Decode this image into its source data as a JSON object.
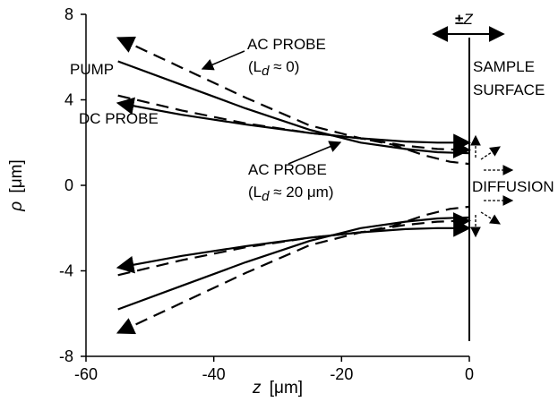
{
  "chart_data": {
    "type": "line",
    "xlim": [
      -60,
      0
    ],
    "ylim": [
      -8,
      8
    ],
    "x_ticks": [
      "-60",
      "-40",
      "-20",
      "0"
    ],
    "y_ticks": [
      "8",
      "4",
      "0",
      "-4",
      "-8"
    ],
    "xlabel": {
      "var": "z",
      "unit": "[μm]"
    },
    "ylabel": {
      "var": "ρ",
      "unit": "[μm]"
    },
    "grid": false,
    "legend": "none",
    "series": [
      {
        "id": "pump",
        "style": "solid",
        "arrow": false,
        "points": [
          [
            -55,
            5.8
          ],
          [
            -45,
            4.7
          ],
          [
            -35,
            3.6
          ],
          [
            -25,
            2.6
          ],
          [
            -17,
            2.0
          ],
          [
            -10,
            1.7
          ],
          [
            -5,
            1.55
          ],
          [
            0,
            1.5
          ]
        ]
      },
      {
        "id": "pump-mirror",
        "style": "solid",
        "arrow": false,
        "points": [
          [
            -55,
            -5.8
          ],
          [
            -45,
            -4.7
          ],
          [
            -35,
            -3.6
          ],
          [
            -25,
            -2.6
          ],
          [
            -17,
            -2.0
          ],
          [
            -10,
            -1.7
          ],
          [
            -5,
            -1.55
          ],
          [
            0,
            -1.5
          ]
        ]
      },
      {
        "id": "dc-probe",
        "style": "solid",
        "arrow": true,
        "points": [
          [
            -55,
            3.85
          ],
          [
            -45,
            3.3
          ],
          [
            -35,
            2.85
          ],
          [
            -25,
            2.45
          ],
          [
            -17,
            2.2
          ],
          [
            -10,
            2.05
          ],
          [
            -5,
            2.0
          ],
          [
            0,
            2.0
          ]
        ]
      },
      {
        "id": "dc-probe-mirror",
        "style": "solid",
        "arrow": true,
        "points": [
          [
            -55,
            -3.85
          ],
          [
            -45,
            -3.3
          ],
          [
            -35,
            -2.85
          ],
          [
            -25,
            -2.45
          ],
          [
            -17,
            -2.2
          ],
          [
            -10,
            -2.05
          ],
          [
            -5,
            -2.0
          ],
          [
            0,
            -2.0
          ]
        ]
      },
      {
        "id": "ac-probe-ld0",
        "style": "dashed",
        "arrow": true,
        "points": [
          [
            -55,
            6.9
          ],
          [
            -45,
            5.5
          ],
          [
            -35,
            4.1
          ],
          [
            -25,
            2.8
          ],
          [
            -17,
            2.2
          ],
          [
            -10,
            1.85
          ],
          [
            -5,
            1.7
          ],
          [
            0,
            1.65
          ]
        ]
      },
      {
        "id": "ac-probe-ld0-mirror",
        "style": "dashed",
        "arrow": true,
        "points": [
          [
            -55,
            -6.9
          ],
          [
            -45,
            -5.5
          ],
          [
            -35,
            -4.1
          ],
          [
            -25,
            -2.8
          ],
          [
            -17,
            -2.2
          ],
          [
            -10,
            -1.85
          ],
          [
            -5,
            -1.7
          ],
          [
            0,
            -1.65
          ]
        ]
      },
      {
        "id": "ac-probe-ld20",
        "style": "dashed",
        "arrow": false,
        "points": [
          [
            -55,
            4.2
          ],
          [
            -45,
            3.5
          ],
          [
            -35,
            2.9
          ],
          [
            -25,
            2.45
          ],
          [
            -17,
            2.2
          ],
          [
            -12,
            1.9
          ],
          [
            -7,
            1.4
          ],
          [
            -3,
            1.1
          ],
          [
            0,
            1.0
          ]
        ]
      },
      {
        "id": "ac-probe-ld20-mirror",
        "style": "dashed",
        "arrow": false,
        "points": [
          [
            -55,
            -4.2
          ],
          [
            -45,
            -3.5
          ],
          [
            -35,
            -2.9
          ],
          [
            -25,
            -2.45
          ],
          [
            -17,
            -2.2
          ],
          [
            -12,
            -1.9
          ],
          [
            -7,
            -1.4
          ],
          [
            -3,
            -1.1
          ],
          [
            0,
            -1.0
          ]
        ]
      }
    ],
    "annotations": {
      "pump": "PUMP",
      "dc_probe": "DC PROBE",
      "ac_probe_1": "AC PROBE",
      "ac_probe_1_sub": "(L",
      "ac_probe_1_subscript": "d",
      "ac_probe_1_rest": " ≈ 0)",
      "ac_probe_2": "AC PROBE",
      "ac_probe_2_sub": "(L",
      "ac_probe_2_subscript": "d",
      "ac_probe_2_rest": " ≈ 20 μm)",
      "sample_surface_1": "SAMPLE",
      "sample_surface_2": "SURFACE",
      "diffusion": "DIFFUSION",
      "plus_minus_z": "±",
      "plus_minus_z_var": "Z"
    }
  }
}
